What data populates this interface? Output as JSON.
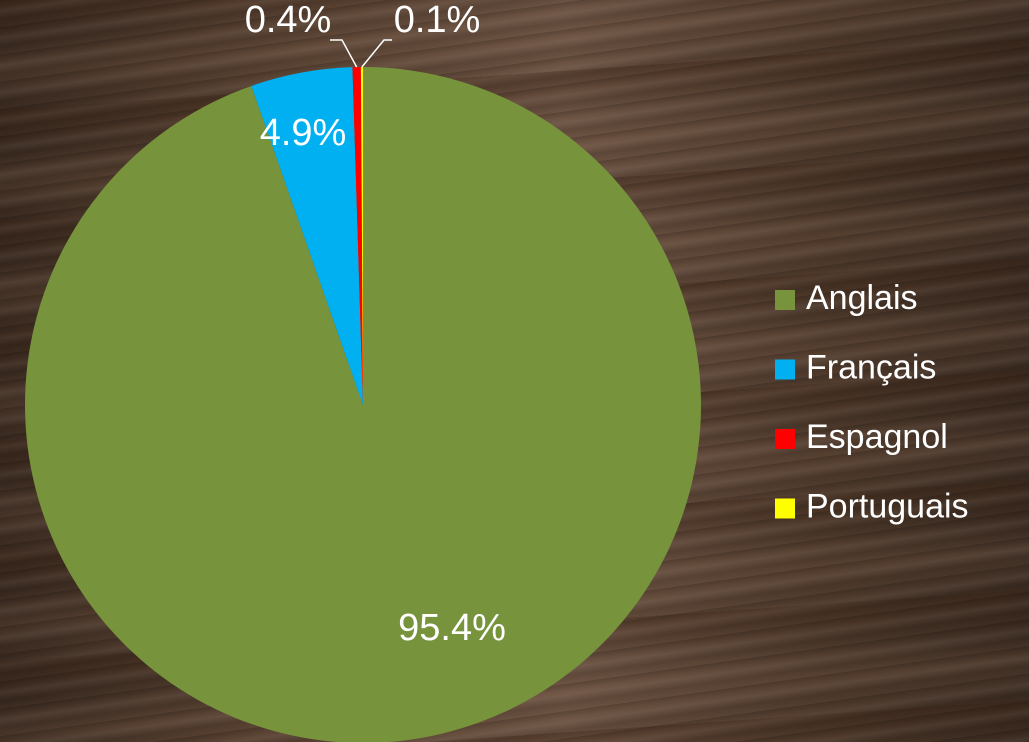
{
  "chart_data": {
    "type": "pie",
    "categories": [
      "Anglais",
      "Français",
      "Espagnol",
      "Portuguais"
    ],
    "values": [
      95.4,
      4.9,
      0.4,
      0.1
    ],
    "value_labels": [
      "95.4%",
      "4.9%",
      "0.4%",
      "0.1%"
    ],
    "colors": [
      "#77933c",
      "#00b0f0",
      "#ff0000",
      "#ffff00"
    ],
    "legend": "right"
  }
}
